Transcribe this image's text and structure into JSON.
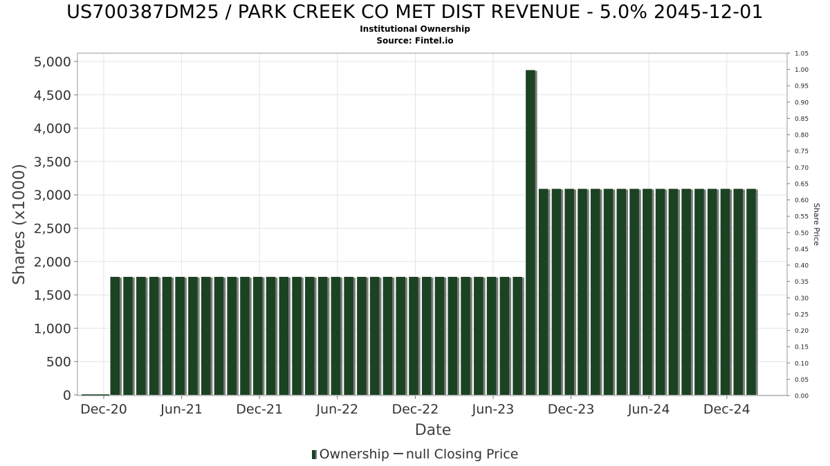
{
  "chart_data": {
    "type": "bar",
    "title": "US700387DM25 / PARK CREEK CO MET DIST REVENUE - 5.0% 2045-12-01",
    "subtitle": "Institutional Ownership",
    "source": "Source: Fintel.io",
    "xlabel": "Date",
    "ylabel": "Shares (x1000)",
    "y2label": "Share Price",
    "ylim": [
      0,
      5000
    ],
    "y2lim": [
      0,
      1.05
    ],
    "yticks": [
      "0",
      "500",
      "1,000",
      "1,500",
      "2,000",
      "2,500",
      "3,000",
      "3,500",
      "4,000",
      "4,500",
      "5,000"
    ],
    "y2ticks": [
      "0.00",
      "0.05",
      "0.10",
      "0.15",
      "0.20",
      "0.25",
      "0.30",
      "0.35",
      "0.40",
      "0.45",
      "0.50",
      "0.55",
      "0.60",
      "0.65",
      "0.70",
      "0.75",
      "0.80",
      "0.85",
      "0.90",
      "0.95",
      "1.00",
      "1.05"
    ],
    "xticks": [
      "Dec-20",
      "Jun-21",
      "Dec-21",
      "Jun-22",
      "Dec-22",
      "Jun-23",
      "Dec-23",
      "Jun-24",
      "Dec-24"
    ],
    "grid": true,
    "series": [
      {
        "name": "Ownership",
        "color": "#1c4224",
        "values": [
          1770,
          1770,
          1770,
          1770,
          1770,
          1770,
          1770,
          1770,
          1770,
          1770,
          1770,
          1770,
          1770,
          1770,
          1770,
          1770,
          1770,
          1770,
          1770,
          1770,
          1770,
          1770,
          1770,
          1770,
          1770,
          1770,
          1770,
          1770,
          1770,
          1770,
          1770,
          1770,
          4870,
          3090,
          3090,
          3090,
          3090,
          3090,
          3090,
          3090,
          3090,
          3090,
          3090,
          3090,
          3090,
          3090,
          3090,
          3090,
          3090,
          3090
        ]
      }
    ],
    "legend": {
      "bar_label": "Ownership",
      "line_label": "null Closing Price",
      "placement": "bottom-center"
    }
  }
}
